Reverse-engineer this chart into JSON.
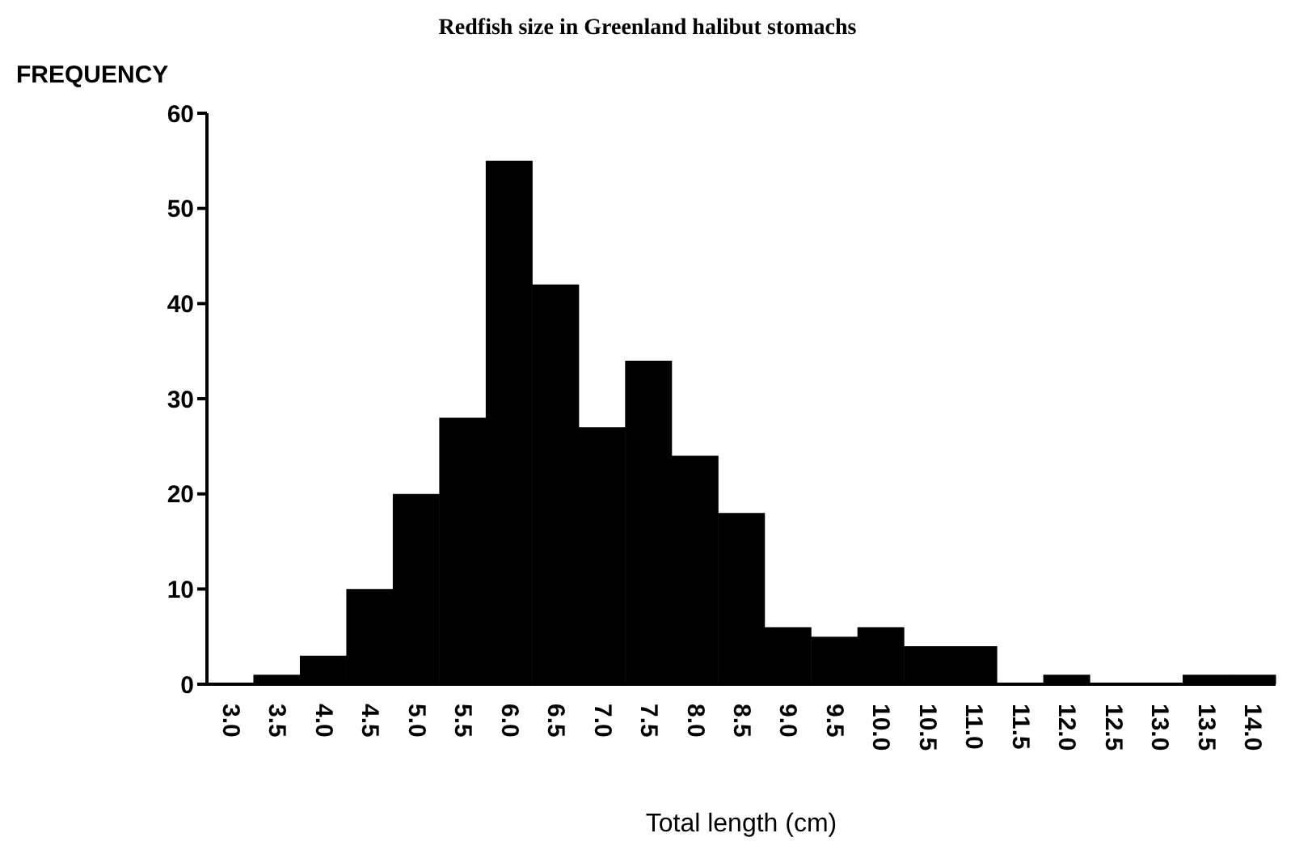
{
  "chart_data": {
    "type": "bar",
    "title": "Redfish size in Greenland halibut stomachs",
    "xlabel": "Total length (cm)",
    "ylabel": "FREQUENCY",
    "categories": [
      "3.0",
      "3.5",
      "4.0",
      "4.5",
      "5.0",
      "5.5",
      "6.0",
      "6.5",
      "7.0",
      "7.5",
      "8.0",
      "8.5",
      "9.0",
      "9.5",
      "10.0",
      "10.5",
      "11.0",
      "11.5",
      "12.0",
      "12.5",
      "13.0",
      "13.5",
      "14.0"
    ],
    "values": [
      0,
      1,
      3,
      10,
      20,
      28,
      55,
      42,
      27,
      34,
      24,
      18,
      6,
      5,
      6,
      4,
      4,
      0,
      1,
      0,
      0,
      1,
      1
    ],
    "color": "#000000",
    "ylim": [
      0,
      60
    ],
    "yticks": [
      0,
      10,
      20,
      30,
      40,
      50,
      60
    ],
    "grid": false,
    "legend": false
  }
}
